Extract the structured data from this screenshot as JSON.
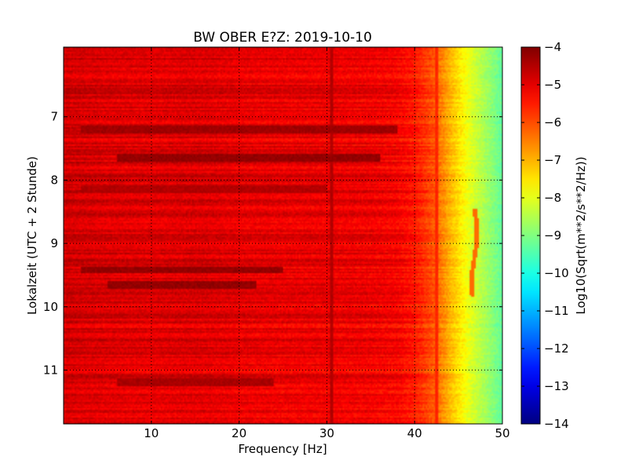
{
  "chart_data": {
    "type": "heatmap",
    "title": "BW OBER E?Z: 2019-10-10",
    "xlabel": "Frequency [Hz]",
    "ylabel": "Lokalzeit (UTC + 2 Stunde)",
    "xlim": [
      0,
      50
    ],
    "ylim": [
      5.9,
      11.85
    ],
    "y_inverted": true,
    "x_ticks": [
      10,
      20,
      30,
      40,
      50
    ],
    "x_tick_labels": [
      "10",
      "20",
      "30",
      "40",
      "50"
    ],
    "y_ticks": [
      7,
      8,
      9,
      10,
      11
    ],
    "y_tick_labels": [
      "7",
      "8",
      "9",
      "10",
      "11"
    ],
    "grid": true,
    "grid_style": "dotted",
    "colormap": "jet",
    "colorbar": {
      "label": "Log10(Sqrt(m**2/s**2/Hz))",
      "range": [
        -14,
        -4
      ],
      "ticks": [
        -4,
        -5,
        -6,
        -7,
        -8,
        -9,
        -10,
        -11,
        -12,
        -13,
        -14
      ],
      "tick_labels": [
        "−4",
        "−5",
        "−6",
        "−7",
        "−8",
        "−9",
        "−10",
        "−11",
        "−12",
        "−13",
        "−14"
      ]
    },
    "frequency_profile": {
      "freq_hz": [
        0,
        5,
        10,
        15,
        20,
        25,
        30,
        35,
        38,
        40,
        42,
        44,
        46,
        48,
        50
      ],
      "level": [
        -4.8,
        -4.9,
        -4.95,
        -4.9,
        -5.0,
        -5.05,
        -5.05,
        -5.1,
        -5.2,
        -5.45,
        -6.0,
        -7.0,
        -7.9,
        -8.6,
        -9.3
      ]
    },
    "strong_bands": [
      {
        "time": 7.2,
        "freq_range": [
          2,
          38
        ],
        "level": -4.3
      },
      {
        "time": 7.65,
        "freq_range": [
          6,
          36
        ],
        "level": -4.2
      },
      {
        "time": 8.15,
        "freq_range": [
          2,
          30
        ],
        "level": -4.5
      },
      {
        "time": 9.42,
        "freq_range": [
          2,
          25
        ],
        "level": -4.2
      },
      {
        "time": 9.65,
        "freq_range": [
          5,
          22
        ],
        "level": -4.2
      },
      {
        "time": 11.2,
        "freq_range": [
          6,
          24
        ],
        "level": -4.4
      }
    ],
    "spectral_lines": [
      {
        "freq": 30.5,
        "level": -4.5
      },
      {
        "freq": 42.5,
        "level": -5.6
      }
    ],
    "features": [
      {
        "description_freq": 46.8,
        "time_range": [
          8.45,
          9.85
        ],
        "level": -6.3
      }
    ]
  }
}
